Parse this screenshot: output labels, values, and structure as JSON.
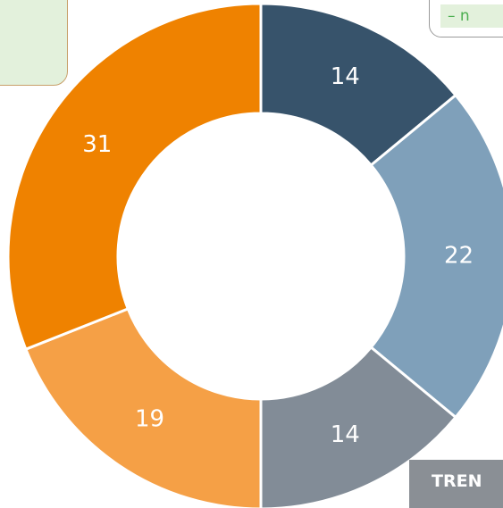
{
  "chart_data": {
    "type": "donut",
    "values": [
      14,
      22,
      14,
      19,
      31
    ],
    "colors": [
      "#37536b",
      "#7fa0ba",
      "#828c97",
      "#f5a046",
      "#ef8200"
    ]
  },
  "panels": {
    "top_right_text": "– n",
    "bottom_right_text": "TREN"
  }
}
